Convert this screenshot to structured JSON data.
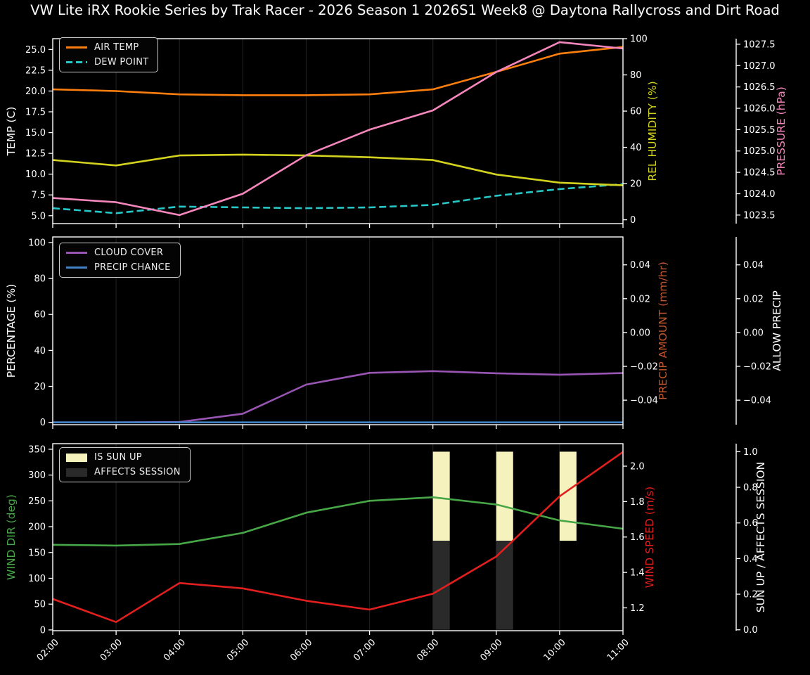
{
  "title": "VW Lite iRX Rookie Series by Trak Racer - 2026 Season 1 2026S1 Week8 @ Daytona Rallycross and Dirt Road",
  "colors": {
    "background": "#000000",
    "text": "#ffffff",
    "grid": "#1e1e1e",
    "spine": "#ffffff",
    "air_temp": "#ff7f0e",
    "dew_point": "#27c7c7",
    "rel_humidity": "#d2d21f",
    "pressure": "#f687bd",
    "cloud_cover": "#9955b3",
    "precip_chance": "#4182c4",
    "precip_amount": "#c1562a",
    "allow_precip": "#ffffff",
    "wind_dir": "#47a747",
    "wind_speed": "#e21f1f",
    "sun_up": "#f6f2bd",
    "affects_session": "#2a2a2a"
  },
  "x_axis": {
    "tick_labels": [
      "02:00",
      "03:00",
      "04:00",
      "05:00",
      "06:00",
      "07:00",
      "08:00",
      "09:00",
      "10:00",
      "11:00"
    ]
  },
  "chart_data": [
    {
      "type": "line",
      "panel": "temperature",
      "categories": [
        "02:00",
        "03:00",
        "04:00",
        "05:00",
        "06:00",
        "07:00",
        "08:00",
        "09:00",
        "10:00",
        "11:00"
      ],
      "legend": [
        {
          "label": "AIR TEMP",
          "swatch": "line",
          "color": "air_temp"
        },
        {
          "label": "DEW POINT",
          "swatch": "dashed",
          "color": "dew_point"
        }
      ],
      "axes": {
        "left": {
          "label": "TEMP (C)",
          "color": "text",
          "range": [
            4.05,
            26.3
          ],
          "ticks": [
            {
              "v": 5,
              "t": "5.0"
            },
            {
              "v": 7.5,
              "t": "7.5"
            },
            {
              "v": 10,
              "t": "10.0"
            },
            {
              "v": 12.5,
              "t": "12.5"
            },
            {
              "v": 15,
              "t": "15.0"
            },
            {
              "v": 17.5,
              "t": "17.5"
            },
            {
              "v": 20,
              "t": "20.0"
            },
            {
              "v": 22.5,
              "t": "22.5"
            },
            {
              "v": 25,
              "t": "25.0"
            }
          ]
        },
        "right_inner": {
          "label": "REL HUMIDITY (%)",
          "color": "rel_humidity",
          "range": [
            -2.1,
            100
          ],
          "ticks": [
            {
              "v": 0,
              "t": "0"
            },
            {
              "v": 20,
              "t": "20"
            },
            {
              "v": 40,
              "t": "40"
            },
            {
              "v": 60,
              "t": "60"
            },
            {
              "v": 80,
              "t": "80"
            },
            {
              "v": 100,
              "t": "100"
            }
          ]
        },
        "right_outer": {
          "label": "PRESSURE (hPa)",
          "color": "pressure",
          "range": [
            1023.3,
            1027.63
          ],
          "ticks": [
            {
              "v": 1023.5,
              "t": "1023.5"
            },
            {
              "v": 1024.0,
              "t": "1024.0"
            },
            {
              "v": 1024.5,
              "t": "1024.5"
            },
            {
              "v": 1025.0,
              "t": "1025.0"
            },
            {
              "v": 1025.5,
              "t": "1025.5"
            },
            {
              "v": 1026.0,
              "t": "1026.0"
            },
            {
              "v": 1026.5,
              "t": "1026.5"
            },
            {
              "v": 1027.0,
              "t": "1027.0"
            },
            {
              "v": 1027.5,
              "t": "1027.5"
            }
          ]
        }
      },
      "series": [
        {
          "name": "AIR TEMP",
          "axis": "left",
          "color": "air_temp",
          "dash": false,
          "values": [
            20.2,
            20.0,
            19.6,
            19.5,
            19.5,
            19.6,
            20.2,
            22.3,
            24.5,
            25.3
          ]
        },
        {
          "name": "DEW POINT",
          "axis": "left",
          "color": "dew_point",
          "dash": true,
          "values": [
            5.9,
            5.3,
            6.1,
            6.0,
            5.9,
            6.0,
            6.3,
            7.4,
            8.2,
            8.8
          ]
        },
        {
          "name": "REL HUMIDITY",
          "axis": "right_inner",
          "color": "rel_humidity",
          "dash": false,
          "values": [
            33,
            30,
            35.5,
            36,
            35.5,
            34.5,
            33,
            25,
            20.5,
            19
          ]
        },
        {
          "name": "PRESSURE",
          "axis": "right_outer",
          "color": "pressure",
          "dash": false,
          "values": [
            1023.9,
            1023.8,
            1023.5,
            1024.0,
            1024.9,
            1025.5,
            1025.95,
            1026.85,
            1027.55,
            1027.4
          ]
        }
      ]
    },
    {
      "type": "line",
      "panel": "precipitation",
      "categories": [
        "02:00",
        "03:00",
        "04:00",
        "05:00",
        "06:00",
        "07:00",
        "08:00",
        "09:00",
        "10:00",
        "11:00"
      ],
      "legend": [
        {
          "label": "CLOUD COVER",
          "swatch": "line",
          "color": "cloud_cover"
        },
        {
          "label": "PRECIP CHANCE",
          "swatch": "line",
          "color": "precip_chance"
        }
      ],
      "axes": {
        "left": {
          "label": "PERCENTAGE (%)",
          "color": "text",
          "range": [
            -1.3,
            103.1
          ],
          "ticks": [
            {
              "v": 0,
              "t": "0"
            },
            {
              "v": 20,
              "t": "20"
            },
            {
              "v": 40,
              "t": "40"
            },
            {
              "v": 60,
              "t": "60"
            },
            {
              "v": 80,
              "t": "80"
            },
            {
              "v": 100,
              "t": "100"
            }
          ]
        },
        "right_inner": {
          "label": "PRECIP AMOUNT (mm/hr)",
          "color": "precip_amount",
          "range": [
            -0.0545,
            0.0565
          ],
          "ticks": [
            {
              "v": 0.04,
              "t": "0.04"
            },
            {
              "v": 0.02,
              "t": "0.02"
            },
            {
              "v": 0,
              "t": "0.00"
            },
            {
              "v": -0.02,
              "t": "−0.02"
            },
            {
              "v": -0.04,
              "t": "−0.04"
            }
          ]
        },
        "right_outer": {
          "label": "ALLOW PRECIP",
          "color": "allow_precip",
          "range": [
            -0.0545,
            0.0565
          ],
          "ticks": [
            {
              "v": 0.04,
              "t": "0.04"
            },
            {
              "v": 0.02,
              "t": "0.02"
            },
            {
              "v": 0,
              "t": "0.00"
            },
            {
              "v": -0.02,
              "t": "−0.02"
            },
            {
              "v": -0.04,
              "t": "−0.04"
            }
          ]
        }
      },
      "series": [
        {
          "name": "CLOUD COVER",
          "axis": "left",
          "color": "cloud_cover",
          "dash": false,
          "values": [
            0,
            0,
            0.2,
            4.8,
            21,
            27.5,
            28.5,
            27.3,
            26.5,
            27.4
          ]
        },
        {
          "name": "PRECIP CHANCE",
          "axis": "left",
          "color": "precip_chance",
          "dash": false,
          "values": [
            0,
            0,
            0,
            0,
            0,
            0,
            0,
            0,
            0,
            0
          ]
        }
      ]
    },
    {
      "type": "line",
      "panel": "wind",
      "categories": [
        "02:00",
        "03:00",
        "04:00",
        "05:00",
        "06:00",
        "07:00",
        "08:00",
        "09:00",
        "10:00",
        "11:00"
      ],
      "legend": [
        {
          "label": "IS SUN UP",
          "swatch": "patch",
          "color": "sun_up"
        },
        {
          "label": "AFFECTS SESSION",
          "swatch": "patch",
          "color": "affects_session"
        }
      ],
      "axes": {
        "left": {
          "label": "WIND DIR (deg)",
          "color": "wind_dir",
          "range": [
            -1.5,
            360.8
          ],
          "ticks": [
            {
              "v": 0,
              "t": "0"
            },
            {
              "v": 50,
              "t": "50"
            },
            {
              "v": 100,
              "t": "100"
            },
            {
              "v": 150,
              "t": "150"
            },
            {
              "v": 200,
              "t": "200"
            },
            {
              "v": 250,
              "t": "250"
            },
            {
              "v": 300,
              "t": "300"
            },
            {
              "v": 350,
              "t": "350"
            }
          ]
        },
        "right_inner": {
          "label": "WIND SPEED (m/s)",
          "color": "wind_speed",
          "range": [
            1.071,
            2.127
          ],
          "ticks": [
            {
              "v": 1.2,
              "t": "1.2"
            },
            {
              "v": 1.4,
              "t": "1.4"
            },
            {
              "v": 1.6,
              "t": "1.6"
            },
            {
              "v": 1.8,
              "t": "1.8"
            },
            {
              "v": 2.0,
              "t": "2.0"
            }
          ]
        },
        "right_outer": {
          "label": "SUN UP / AFFECTS SESSION",
          "color": "text",
          "range": [
            -0.005,
            1.045
          ],
          "ticks": [
            {
              "v": 0,
              "t": "0.0"
            },
            {
              "v": 0.2,
              "t": "0.2"
            },
            {
              "v": 0.4,
              "t": "0.4"
            },
            {
              "v": 0.6,
              "t": "0.6"
            },
            {
              "v": 0.8,
              "t": "0.8"
            },
            {
              "v": 1.0,
              "t": "1.0"
            }
          ]
        }
      },
      "series": [
        {
          "name": "WIND DIR",
          "axis": "left",
          "color": "wind_dir",
          "dash": false,
          "values": [
            165,
            163.5,
            166.5,
            188,
            227,
            250,
            257,
            243,
            212,
            196
          ]
        },
        {
          "name": "WIND SPEED",
          "axis": "right_inner",
          "color": "wind_speed",
          "dash": false,
          "values": [
            1.25,
            1.12,
            1.34,
            1.31,
            1.24,
            1.19,
            1.28,
            1.49,
            1.83,
            2.08
          ]
        }
      ],
      "bars": [
        {
          "name": "IS SUN UP",
          "color": "sun_up",
          "axis": "right_outer",
          "at": [
            "08:00",
            "09:00",
            "10:00"
          ],
          "span": [
            0.5,
            1.0
          ]
        },
        {
          "name": "AFFECTS SESSION",
          "color": "affects_session",
          "axis": "right_outer",
          "at": [
            "08:00",
            "09:00"
          ],
          "span": [
            0.0,
            0.5
          ]
        }
      ]
    }
  ]
}
